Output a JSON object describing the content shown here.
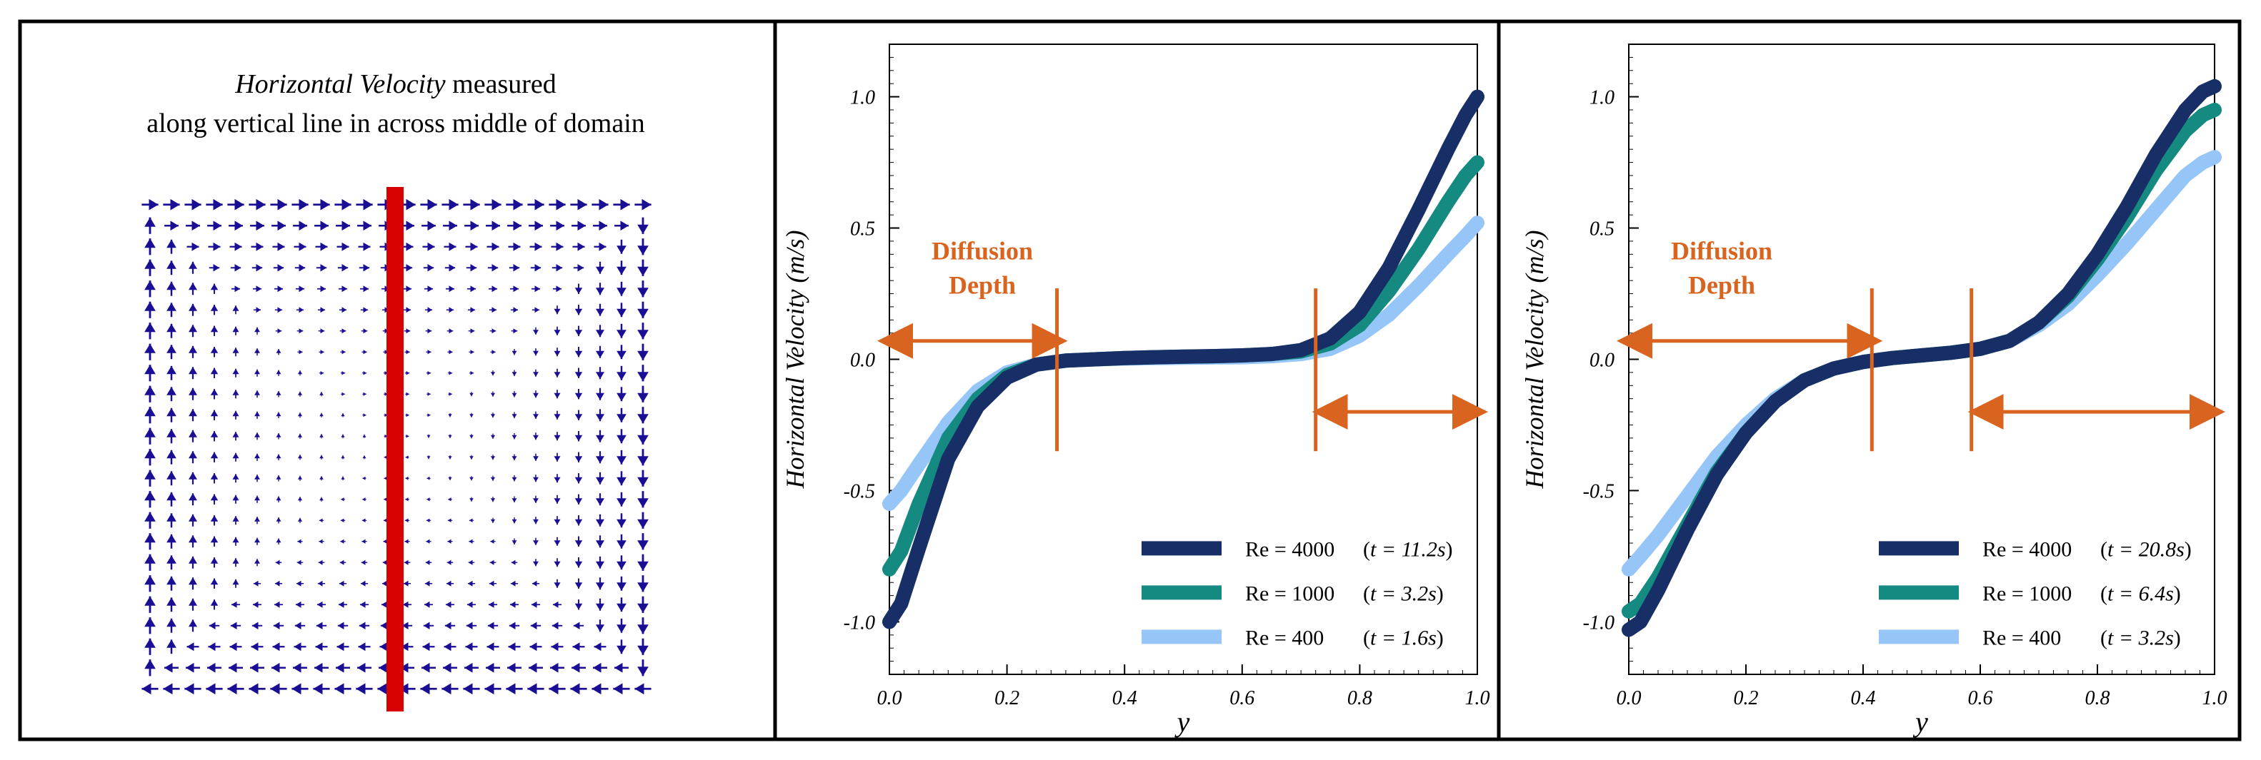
{
  "colors": {
    "re4000": "#172f66",
    "re1000": "#148a80",
    "re400": "#96c5f7",
    "annotation": "#d8641f",
    "vector": "#1a0e94",
    "red_line": "#d80000",
    "frame": "#000000"
  },
  "left_panel": {
    "title_italic": "Horizontal Velocity",
    "title_rest": " measured",
    "title_line2": "along vertical line in across middle of domain"
  },
  "chart_data": [
    {
      "type": "line",
      "title": "",
      "xlabel": "y",
      "ylabel": "Horizontal Velocity (m/s)",
      "xlim": [
        0,
        1
      ],
      "ylim": [
        -1.2,
        1.2
      ],
      "xticks": [
        "0.0",
        "0.2",
        "0.4",
        "0.6",
        "0.8",
        "1.0"
      ],
      "yticks": [
        "-1.0",
        "-0.5",
        "0.0",
        "0.5",
        "1.0"
      ],
      "x": [
        0,
        0.02,
        0.05,
        0.1,
        0.15,
        0.2,
        0.25,
        0.3,
        0.35,
        0.4,
        0.45,
        0.5,
        0.55,
        0.6,
        0.65,
        0.7,
        0.75,
        0.8,
        0.85,
        0.9,
        0.95,
        0.98,
        1.0
      ],
      "series": [
        {
          "name": "Re = 4000",
          "t_label": "t = 11.2s",
          "color_key": "re4000",
          "values": [
            -1.0,
            -0.93,
            -0.72,
            -0.38,
            -0.18,
            -0.07,
            -0.02,
            -0.005,
            0.0,
            0.005,
            0.008,
            0.01,
            0.012,
            0.015,
            0.02,
            0.035,
            0.08,
            0.18,
            0.35,
            0.57,
            0.8,
            0.93,
            1.0
          ]
        },
        {
          "name": "Re = 1000",
          "t_label": "t = 3.2s",
          "color_key": "re1000",
          "values": [
            -0.8,
            -0.73,
            -0.55,
            -0.3,
            -0.15,
            -0.06,
            -0.02,
            -0.005,
            0.0,
            0.005,
            0.008,
            0.01,
            0.012,
            0.015,
            0.02,
            0.03,
            0.06,
            0.13,
            0.26,
            0.42,
            0.6,
            0.7,
            0.75
          ]
        },
        {
          "name": "Re = 400",
          "t_label": "t = 1.6s",
          "color_key": "re400",
          "values": [
            -0.55,
            -0.5,
            -0.4,
            -0.24,
            -0.12,
            -0.05,
            -0.02,
            -0.005,
            0.0,
            0.003,
            0.005,
            0.006,
            0.007,
            0.008,
            0.012,
            0.02,
            0.04,
            0.09,
            0.17,
            0.28,
            0.4,
            0.47,
            0.52
          ]
        }
      ],
      "annotations": {
        "label_line1": "Diffusion",
        "label_line2": "Depth",
        "markers_x": [
          0.285,
          0.725
        ]
      },
      "legend_position": "bottom-right"
    },
    {
      "type": "line",
      "title": "",
      "xlabel": "y",
      "ylabel": "Horizontal Velocity (m/s)",
      "xlim": [
        0,
        1
      ],
      "ylim": [
        -1.2,
        1.2
      ],
      "xticks": [
        "0.0",
        "0.2",
        "0.4",
        "0.6",
        "0.8",
        "1.0"
      ],
      "yticks": [
        "-1.0",
        "-0.5",
        "0.0",
        "0.5",
        "1.0"
      ],
      "x": [
        0,
        0.02,
        0.05,
        0.1,
        0.15,
        0.2,
        0.25,
        0.3,
        0.35,
        0.4,
        0.45,
        0.5,
        0.55,
        0.6,
        0.65,
        0.7,
        0.75,
        0.8,
        0.85,
        0.9,
        0.95,
        0.98,
        1.0
      ],
      "series": [
        {
          "name": "Re = 4000",
          "t_label": "t = 20.8s",
          "color_key": "re4000",
          "values": [
            -1.03,
            -1.0,
            -0.88,
            -0.65,
            -0.44,
            -0.28,
            -0.16,
            -0.08,
            -0.035,
            -0.01,
            0.005,
            0.015,
            0.025,
            0.04,
            0.07,
            0.14,
            0.25,
            0.4,
            0.58,
            0.78,
            0.95,
            1.02,
            1.04
          ]
        },
        {
          "name": "Re = 1000",
          "t_label": "t = 6.4s",
          "color_key": "re1000",
          "values": [
            -0.96,
            -0.93,
            -0.83,
            -0.63,
            -0.43,
            -0.28,
            -0.16,
            -0.08,
            -0.035,
            -0.01,
            0.005,
            0.015,
            0.025,
            0.04,
            0.07,
            0.14,
            0.24,
            0.38,
            0.54,
            0.72,
            0.87,
            0.93,
            0.95
          ]
        },
        {
          "name": "Re = 400",
          "t_label": "t = 3.2s",
          "color_key": "re400",
          "values": [
            -0.8,
            -0.75,
            -0.67,
            -0.52,
            -0.37,
            -0.25,
            -0.15,
            -0.08,
            -0.035,
            -0.01,
            0.005,
            0.015,
            0.025,
            0.04,
            0.07,
            0.13,
            0.21,
            0.32,
            0.44,
            0.57,
            0.7,
            0.75,
            0.77
          ]
        }
      ],
      "annotations": {
        "label_line1": "Diffusion",
        "label_line2": "Depth",
        "markers_x": [
          0.415,
          0.585
        ]
      },
      "legend_position": "bottom-right"
    }
  ]
}
